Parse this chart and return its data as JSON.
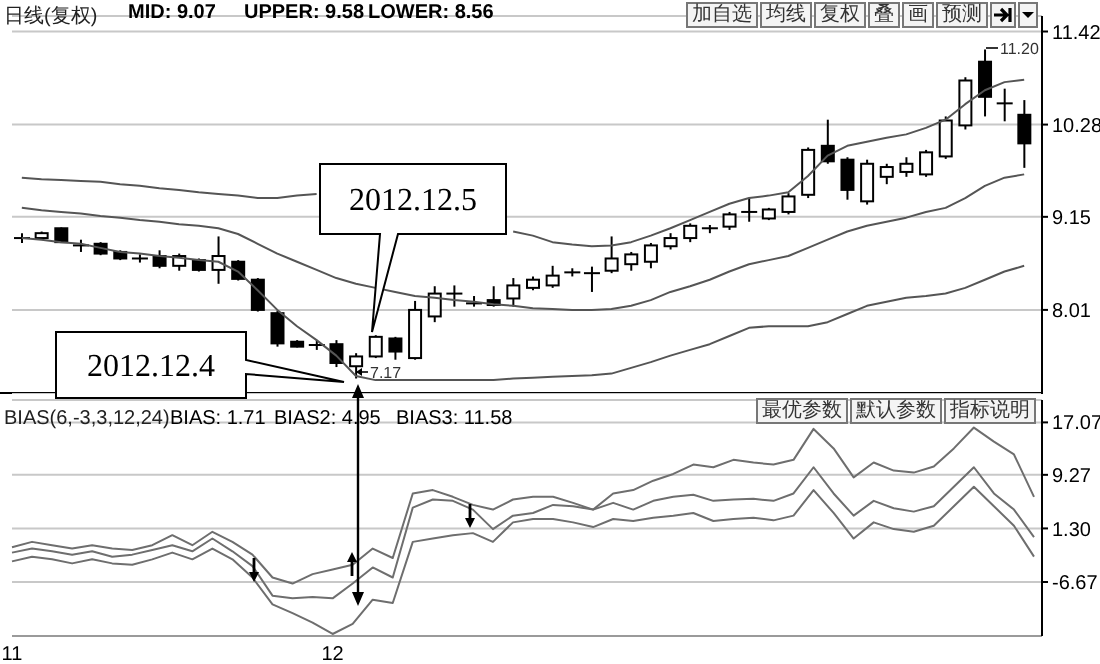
{
  "chart_data": [
    {
      "type": "candlestick",
      "title": "日线(复权)",
      "categories": [
        null,
        null,
        null,
        null,
        null,
        null,
        null,
        null,
        null,
        null,
        null,
        null,
        null,
        null,
        null,
        null,
        null,
        null,
        null,
        null,
        null,
        null,
        null,
        null,
        null,
        null,
        null,
        null,
        null,
        null,
        null,
        null,
        null,
        null,
        null,
        null,
        null,
        null,
        null,
        null,
        null,
        null,
        null,
        null,
        null,
        null,
        null,
        null,
        null,
        null,
        null,
        null
      ],
      "series": [
        {
          "color": "#000000",
          "ohlc": [
            [
              8.89,
              8.95,
              8.83,
              8.89
            ],
            [
              8.89,
              8.97,
              8.87,
              8.95
            ],
            [
              9.01,
              9.02,
              8.83,
              8.84
            ],
            [
              8.8,
              8.87,
              8.72,
              8.8
            ],
            [
              8.82,
              8.84,
              8.68,
              8.7
            ],
            [
              8.72,
              8.74,
              8.62,
              8.64
            ],
            [
              8.64,
              8.69,
              8.59,
              8.64
            ],
            [
              8.67,
              8.74,
              8.52,
              8.55
            ],
            [
              8.55,
              8.7,
              8.49,
              8.67
            ],
            [
              8.62,
              8.64,
              8.48,
              8.5
            ],
            [
              8.5,
              8.91,
              8.33,
              8.67
            ],
            [
              8.6,
              8.62,
              8.37,
              8.39
            ],
            [
              8.38,
              8.4,
              7.99,
              8.01
            ],
            [
              7.97,
              8.0,
              7.56,
              7.6
            ],
            [
              7.62,
              7.64,
              7.55,
              7.56
            ],
            [
              7.58,
              7.64,
              7.52,
              7.58
            ],
            [
              7.59,
              7.64,
              7.31,
              7.36
            ],
            [
              7.32,
              7.48,
              7.17,
              7.44
            ],
            [
              7.44,
              7.7,
              7.42,
              7.68
            ],
            [
              7.66,
              7.68,
              7.4,
              7.5
            ],
            [
              7.42,
              8.12,
              7.4,
              8.01
            ],
            [
              7.93,
              8.3,
              7.86,
              8.21
            ],
            [
              8.21,
              8.31,
              8.05,
              8.21
            ],
            [
              8.09,
              8.18,
              8.05,
              8.09
            ],
            [
              8.13,
              8.3,
              8.05,
              8.07
            ],
            [
              8.15,
              8.4,
              8.05,
              8.31
            ],
            [
              8.28,
              8.42,
              8.25,
              8.38
            ],
            [
              8.31,
              8.55,
              8.28,
              8.43
            ],
            [
              8.47,
              8.52,
              8.42,
              8.47
            ],
            [
              8.46,
              8.54,
              8.23,
              8.46
            ],
            [
              8.49,
              8.91,
              8.46,
              8.64
            ],
            [
              8.57,
              8.72,
              8.49,
              8.69
            ],
            [
              8.6,
              8.83,
              8.52,
              8.8
            ],
            [
              8.79,
              8.95,
              8.75,
              8.89
            ],
            [
              8.89,
              9.07,
              8.84,
              9.04
            ],
            [
              9.01,
              9.05,
              8.95,
              9.01
            ],
            [
              9.03,
              9.21,
              8.99,
              9.18
            ],
            [
              9.21,
              9.38,
              9.09,
              9.21
            ],
            [
              9.13,
              9.26,
              9.11,
              9.24
            ],
            [
              9.21,
              9.44,
              9.18,
              9.4
            ],
            [
              9.42,
              10.0,
              9.38,
              9.97
            ],
            [
              10.02,
              10.34,
              9.8,
              9.83
            ],
            [
              9.85,
              9.88,
              9.36,
              9.48
            ],
            [
              9.34,
              9.85,
              9.3,
              9.8
            ],
            [
              9.64,
              9.8,
              9.55,
              9.76
            ],
            [
              9.7,
              9.88,
              9.64,
              9.8
            ],
            [
              9.67,
              9.97,
              9.64,
              9.94
            ],
            [
              9.89,
              10.38,
              9.86,
              10.33
            ],
            [
              10.27,
              10.86,
              10.22,
              10.82
            ],
            [
              11.05,
              11.2,
              10.38,
              10.62
            ],
            [
              10.54,
              10.72,
              10.32,
              10.54
            ],
            [
              10.4,
              10.58,
              9.75,
              10.05
            ]
          ]
        },
        {
          "type": "line",
          "color": "#555555",
          "values": [
            9.63,
            9.61,
            9.6,
            9.59,
            9.58,
            9.55,
            9.53,
            9.5,
            9.48,
            9.45,
            9.43,
            9.41,
            9.38,
            9.38,
            9.41,
            9.43,
            null,
            null,
            null,
            null,
            null,
            null,
            null,
            null,
            null,
            8.97,
            8.92,
            8.84,
            8.81,
            8.79,
            8.8,
            8.84,
            8.92,
            9.01,
            9.11,
            9.21,
            9.31,
            9.38,
            9.41,
            9.45,
            9.65,
            9.9,
            10.02,
            10.07,
            10.12,
            10.16,
            10.24,
            10.34,
            10.53,
            10.7,
            10.8,
            10.83
          ]
        },
        {
          "type": "line",
          "color": "#555555",
          "values": [
            9.26,
            9.23,
            9.21,
            9.19,
            9.16,
            9.14,
            9.11,
            9.09,
            9.06,
            9.04,
            9.01,
            8.94,
            8.82,
            8.7,
            8.6,
            8.5,
            8.4,
            8.33,
            8.28,
            8.23,
            8.18,
            8.16,
            8.13,
            8.11,
            8.08,
            8.06,
            8.03,
            8.02,
            8.01,
            8.01,
            8.02,
            8.06,
            8.13,
            8.23,
            8.3,
            8.38,
            8.48,
            8.57,
            8.62,
            8.67,
            8.77,
            8.87,
            8.97,
            9.04,
            9.09,
            9.14,
            9.21,
            9.26,
            9.38,
            9.53,
            9.63,
            9.67
          ]
        },
        {
          "type": "line",
          "color": "#555555",
          "values": [
            8.89,
            8.87,
            8.84,
            8.82,
            8.77,
            8.72,
            8.7,
            8.67,
            8.65,
            8.62,
            8.6,
            8.48,
            8.25,
            8.01,
            7.81,
            7.64,
            7.45,
            7.2,
            7.15,
            7.15,
            7.15,
            7.15,
            7.15,
            7.15,
            7.15,
            7.17,
            7.18,
            7.19,
            7.2,
            7.21,
            7.23,
            7.3,
            7.37,
            7.45,
            7.52,
            7.59,
            7.69,
            7.79,
            7.81,
            7.81,
            7.81,
            7.86,
            7.96,
            8.06,
            8.11,
            8.16,
            8.18,
            8.21,
            8.28,
            8.38,
            8.48,
            8.55
          ]
        }
      ],
      "ylim": [
        6.98,
        11.61
      ],
      "yticks": [
        8.01,
        9.15,
        10.28,
        11.42
      ],
      "grid": "y",
      "tick_labels": "y",
      "marker": "none",
      "line_style": "solid",
      "annotations": [
        "MID: 9.07",
        "UPPER: 9.58",
        "LOWER: 8.56",
        "2012.12.5",
        "2012.12.4",
        "11.20",
        "7.17",
        "加自选",
        "均线",
        "复权",
        "叠",
        "画",
        "预测"
      ]
    },
    {
      "type": "line",
      "title": "BIAS(6,-3,3,12,24)",
      "categories": [
        "11",
        null,
        null,
        null,
        null,
        null,
        null,
        null,
        null,
        null,
        null,
        null,
        null,
        null,
        null,
        null,
        "12",
        null,
        null,
        null,
        null,
        null,
        null,
        null,
        null,
        null,
        null,
        null,
        null,
        null,
        null,
        null,
        null,
        null,
        null,
        null,
        null,
        null,
        null,
        null,
        null,
        null,
        null,
        null,
        null,
        null,
        null,
        null,
        null,
        null,
        null,
        null
      ],
      "series": [
        {
          "color": "#6e6e6e",
          "values": [
            -1.5,
            -0.7,
            -1.2,
            -1.7,
            -1.2,
            -1.7,
            -1.9,
            -1.2,
            0.3,
            -1.2,
            0.8,
            -0.7,
            -2.6,
            -6.0,
            -6.9,
            -5.5,
            -4.8,
            -4.1,
            -1.7,
            -3.1,
            6.5,
            7.0,
            6.0,
            4.8,
            4.1,
            5.6,
            6.0,
            6.0,
            5.1,
            4.1,
            6.5,
            7.0,
            8.4,
            9.4,
            10.8,
            10.4,
            11.5,
            11.1,
            10.8,
            11.5,
            16.1,
            13.2,
            8.9,
            11.1,
            9.9,
            9.6,
            10.5,
            13.2,
            16.3,
            14.2,
            12.3,
            6.0
          ]
        },
        {
          "color": "#6e6e6e",
          "values": [
            -2.3,
            -1.7,
            -2.1,
            -2.6,
            -2.1,
            -2.9,
            -2.6,
            -1.9,
            -1.2,
            -2.1,
            -0.2,
            -2.1,
            -4.3,
            -8.7,
            -9.1,
            -8.9,
            -9.1,
            -6.9,
            -4.5,
            -6.0,
            4.4,
            5.6,
            5.4,
            4.1,
            1.2,
            3.2,
            3.6,
            4.8,
            4.6,
            4.1,
            5.1,
            4.1,
            5.4,
            6.0,
            6.3,
            5.4,
            5.6,
            5.7,
            5.4,
            6.5,
            10.4,
            6.5,
            3.2,
            5.4,
            4.3,
            3.8,
            4.6,
            7.5,
            10.4,
            6.5,
            4.1,
            0.0
          ]
        },
        {
          "color": "#6e6e6e",
          "values": [
            -3.6,
            -2.9,
            -3.3,
            -3.9,
            -3.3,
            -3.9,
            -4.1,
            -3.3,
            -2.3,
            -3.3,
            -1.7,
            -3.3,
            -6.0,
            -10.0,
            -11.3,
            -12.7,
            -14.4,
            -12.9,
            -9.3,
            -9.8,
            -0.7,
            -0.2,
            0.3,
            0.6,
            -0.7,
            2.2,
            2.7,
            2.7,
            2.2,
            1.5,
            2.7,
            2.4,
            2.9,
            3.2,
            3.6,
            2.4,
            2.7,
            2.9,
            2.5,
            3.2,
            7.0,
            3.6,
            -0.2,
            2.2,
            1.2,
            0.8,
            1.7,
            4.6,
            7.5,
            4.6,
            1.7,
            -2.9
          ]
        }
      ],
      "ylim": [
        -14.7,
        20.4
      ],
      "yticks": [
        -6.67,
        {
          "value": 1.3,
          "label": "1.30"
        },
        9.27,
        17.07
      ],
      "grid": "y",
      "marker": "none",
      "line_style": "solid",
      "annotations": [
        "BIAS: 1.71",
        "BIAS2: 4.95",
        "BIAS3: 11.58",
        "最优参数",
        "默认参数",
        "指标说明"
      ]
    }
  ]
}
